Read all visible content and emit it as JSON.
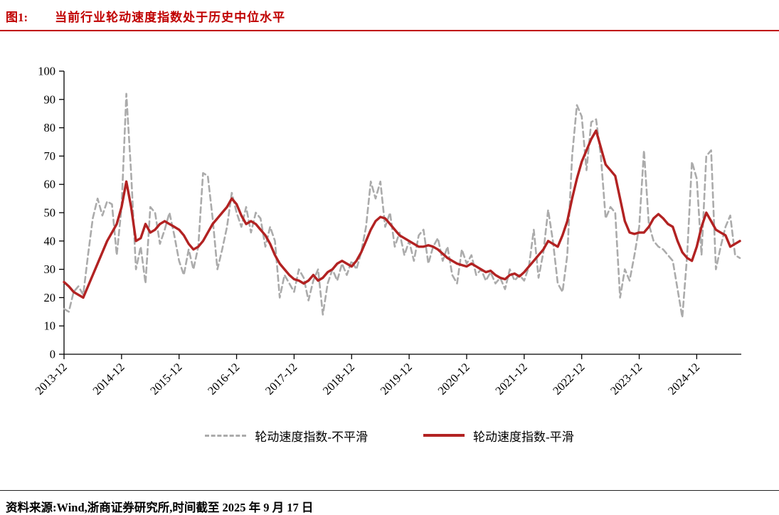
{
  "header": {
    "figure_label": "图1:",
    "title": "当前行业轮动速度指数处于历史中位水平"
  },
  "footer": {
    "source": "资料来源:Wind,浙商证券研究所,时间截至 2025 年 9 月 17 日"
  },
  "colors": {
    "accent": "#c00000",
    "smoothed_line": "#b22222",
    "unsmoothed_line": "#ababab",
    "axis": "#000000"
  },
  "chart_data": {
    "type": "line",
    "title": "当前行业轮动速度指数处于历史中位水平",
    "xlabel": "",
    "ylabel": "",
    "ylim": [
      0,
      100
    ],
    "y_ticks": [
      0,
      10,
      20,
      30,
      40,
      50,
      60,
      70,
      80,
      90,
      100
    ],
    "grid": false,
    "legend_position": "bottom",
    "x_start": "2013-12",
    "x_end": "2025-09",
    "x_frequency": "monthly",
    "x_tick_labels": [
      "2013-12",
      "2014-12",
      "2015-12",
      "2016-12",
      "2017-12",
      "2018-12",
      "2019-12",
      "2020-12",
      "2021-12",
      "2022-12",
      "2023-12",
      "2024-12"
    ],
    "x_tick_indices": [
      0,
      12,
      24,
      36,
      48,
      60,
      72,
      84,
      96,
      108,
      120,
      132
    ],
    "series": [
      {
        "name": "轮动速度指数-不平滑",
        "color": "#ababab",
        "style": "dashed",
        "values": [
          16,
          15,
          22,
          24,
          21,
          35,
          48,
          55,
          49,
          54,
          53,
          35,
          52,
          92,
          64,
          30,
          38,
          25,
          52,
          50,
          39,
          44,
          50,
          42,
          33,
          28,
          37,
          30,
          38,
          64,
          63,
          48,
          30,
          37,
          45,
          57,
          50,
          45,
          52,
          43,
          50,
          48,
          38,
          45,
          40,
          20,
          28,
          25,
          22,
          30,
          27,
          19,
          26,
          30,
          14,
          25,
          30,
          26,
          32,
          28,
          33,
          30,
          36,
          45,
          61,
          55,
          61,
          45,
          50,
          38,
          43,
          35,
          40,
          33,
          42,
          44,
          32,
          38,
          41,
          33,
          38,
          28,
          25,
          37,
          32,
          35,
          28,
          30,
          26,
          29,
          25,
          27,
          23,
          30,
          26,
          28,
          26,
          31,
          44,
          27,
          36,
          51,
          40,
          25,
          22,
          35,
          70,
          88,
          84,
          65,
          82,
          83,
          70,
          48,
          52,
          50,
          20,
          30,
          26,
          35,
          45,
          72,
          46,
          40,
          38,
          37,
          35,
          33,
          23,
          13,
          35,
          68,
          62,
          35,
          70,
          72,
          30,
          38,
          45,
          49,
          35,
          34
        ]
      },
      {
        "name": "轮动速度指数-平滑",
        "color": "#b22222",
        "style": "solid",
        "values": [
          25.5,
          24,
          22,
          21,
          20,
          24,
          28,
          32,
          36,
          40,
          43,
          46,
          52,
          61,
          52,
          40,
          41,
          46,
          43,
          44,
          46,
          47,
          46,
          45,
          44,
          42,
          39,
          37,
          38,
          40,
          43,
          46,
          48,
          50,
          52,
          55,
          53,
          49,
          46,
          47,
          46,
          44,
          42,
          39,
          35,
          32,
          30,
          28,
          26.5,
          26,
          25,
          26,
          28,
          26,
          27,
          29,
          30,
          32,
          33,
          32,
          31,
          33,
          36,
          40,
          44,
          47,
          48.5,
          48,
          46,
          44,
          42,
          41,
          40,
          39,
          38,
          38,
          38.5,
          38,
          37,
          35.5,
          34,
          33,
          32,
          31.5,
          31,
          32,
          31,
          30,
          29,
          29.5,
          28,
          27,
          26.5,
          28,
          28.5,
          27.5,
          29,
          31,
          33,
          35,
          37,
          40,
          39,
          38,
          42,
          47,
          55,
          62,
          68,
          72,
          76,
          79,
          73,
          67,
          65,
          63,
          55,
          47,
          43,
          42.5,
          43,
          43,
          45,
          48,
          49.5,
          48,
          46,
          45,
          40,
          36,
          34,
          33,
          38,
          45,
          50,
          47,
          44,
          43,
          42,
          38,
          39,
          40
        ]
      }
    ]
  }
}
